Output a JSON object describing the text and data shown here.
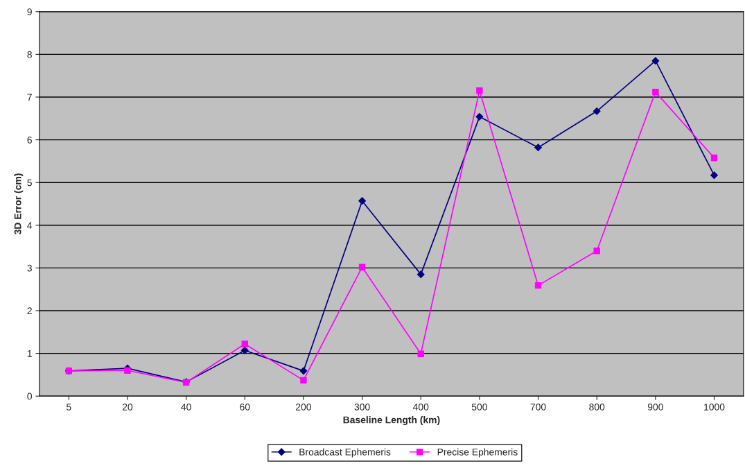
{
  "chart_data": {
    "type": "line",
    "xlabel": "Baseline Length (km)",
    "ylabel": "3D Error (cm)",
    "categories": [
      "5",
      "20",
      "40",
      "60",
      "200",
      "300",
      "400",
      "500",
      "700",
      "800",
      "900",
      "1000"
    ],
    "series": [
      {
        "name": "Broadcast Ephemeris",
        "color": "#000080",
        "marker": "diamond",
        "values": [
          0.59,
          0.65,
          0.33,
          1.07,
          0.59,
          4.57,
          2.85,
          6.54,
          5.82,
          6.67,
          7.85,
          5.17
        ]
      },
      {
        "name": "Precise Ephemeris",
        "color": "#ff00ff",
        "marker": "square",
        "values": [
          0.59,
          0.6,
          0.32,
          1.22,
          0.37,
          3.02,
          0.99,
          7.15,
          2.59,
          3.4,
          7.12,
          5.58
        ]
      }
    ],
    "ylim": [
      0,
      9
    ],
    "yticks": [
      0,
      1,
      2,
      3,
      4,
      5,
      6,
      7,
      8,
      9
    ],
    "grid": "y",
    "legend": "bottom",
    "line_style": "solid"
  }
}
